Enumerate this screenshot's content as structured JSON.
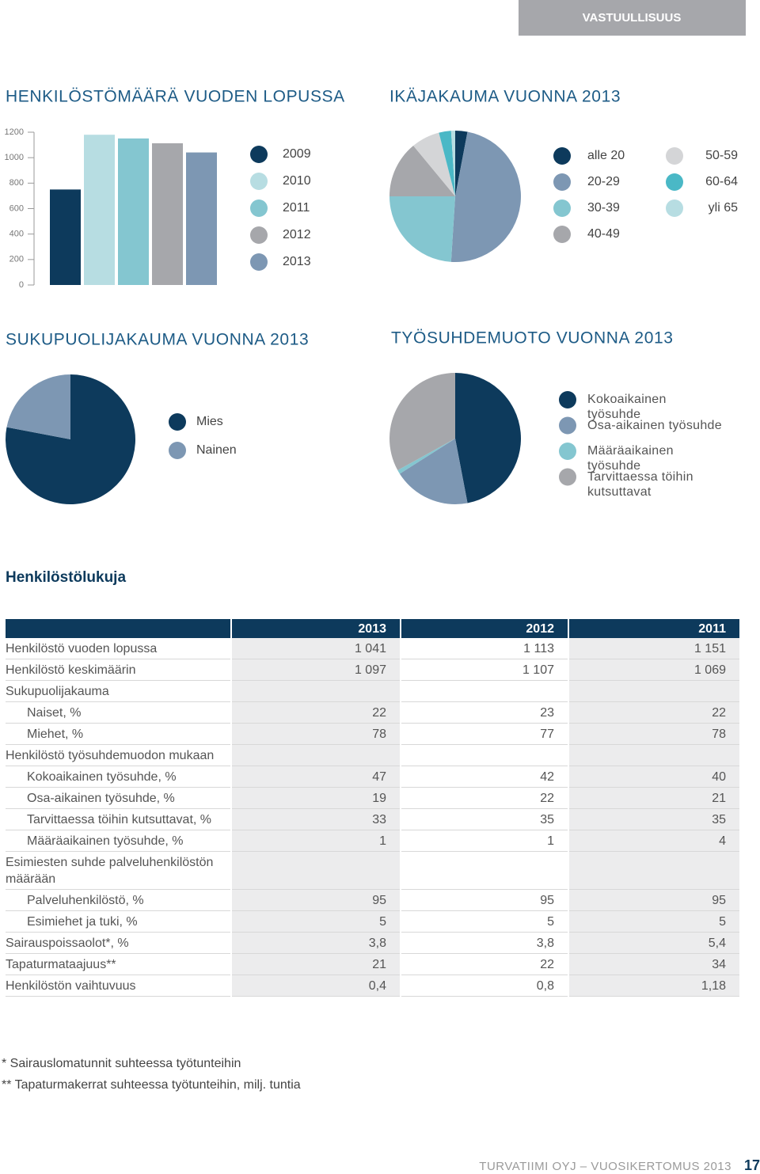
{
  "header": {
    "section": "VASTUULLISUUS"
  },
  "chart_data": [
    {
      "type": "bar",
      "title": "HENKILÖSTÖMÄÄRÄ VUODEN LOPUSSA",
      "categories": [
        "2009",
        "2010",
        "2011",
        "2012",
        "2013"
      ],
      "values": [
        750,
        1180,
        1151,
        1113,
        1041
      ],
      "colors": [
        "#0d3a5c",
        "#b7dde2",
        "#84c6d0",
        "#a6a7ab",
        "#7d97b3"
      ],
      "ylim": [
        0,
        1200
      ],
      "yticks": [
        0,
        200,
        400,
        600,
        800,
        1000,
        1200
      ]
    },
    {
      "type": "pie",
      "title": "IKÄJAKAUMA VUONNA 2013",
      "categories": [
        "alle 20",
        "20-29",
        "30-39",
        "40-49",
        "50-59",
        "60-64",
        "yli 65"
      ],
      "values": [
        3,
        48,
        24,
        14,
        7,
        3,
        1
      ],
      "colors": [
        "#0d3a5c",
        "#7d97b3",
        "#84c6d0",
        "#a6a7ab",
        "#d4d5d7",
        "#4ab8c6",
        "#b7dde2"
      ]
    },
    {
      "type": "pie",
      "title": "SUKUPUOLIJAKAUMA VUONNA 2013",
      "categories": [
        "Mies",
        "Nainen"
      ],
      "values": [
        78,
        22
      ],
      "colors": [
        "#0d3a5c",
        "#7d97b3"
      ]
    },
    {
      "type": "pie",
      "title": "TYÖSUHDEMUOTO VUONNA 2013",
      "categories": [
        "Kokoaikainen työsuhde",
        "Osa-aikainen työsuhde",
        "Määräaikainen työsuhde",
        "Tarvittaessa töihin kutsuttavat"
      ],
      "values": [
        47,
        19,
        1,
        33
      ],
      "colors": [
        "#0d3a5c",
        "#7d97b3",
        "#84c6d0",
        "#a6a7ab"
      ]
    }
  ],
  "table": {
    "title": "Henkilöstölukuja",
    "columns": [
      "2013",
      "2012",
      "2011"
    ],
    "rows": [
      {
        "label": "Henkilöstö vuoden lopussa",
        "values": [
          "1 041",
          "1 113",
          "1 151"
        ]
      },
      {
        "label": "Henkilöstö keskimäärin",
        "values": [
          "1 097",
          "1 107",
          "1 069"
        ]
      },
      {
        "label": "Sukupuolijakauma",
        "rows": [
          {
            "label": "Naiset, %",
            "values": [
              "22",
              "23",
              "22"
            ]
          },
          {
            "label": "Miehet, %",
            "values": [
              "78",
              "77",
              "78"
            ]
          }
        ]
      },
      {
        "label": "Henkilöstö työsuhdemuodon mukaan",
        "rows": [
          {
            "label": "Kokoaikainen työsuhde, %",
            "values": [
              "47",
              "42",
              "40"
            ]
          },
          {
            "label": "Osa-aikainen työsuhde, %",
            "values": [
              "19",
              "22",
              "21"
            ]
          },
          {
            "label": "Tarvittaessa töihin kutsuttavat, %",
            "values": [
              "33",
              "35",
              "35"
            ]
          },
          {
            "label": "Määräaikainen työsuhde, %",
            "values": [
              "1",
              "1",
              "4"
            ]
          }
        ]
      },
      {
        "label": "Esimiesten suhde palveluhenkilöstön määrään",
        "rows": [
          {
            "label": "Palveluhenkilöstö, %",
            "values": [
              "95",
              "95",
              "95"
            ]
          },
          {
            "label": "Esimiehet ja tuki, %",
            "values": [
              "5",
              "5",
              "5"
            ]
          }
        ]
      },
      {
        "label": "Sairauspoissaolot*, %",
        "values": [
          "3,8",
          "3,8",
          "5,4"
        ]
      },
      {
        "label": "Tapaturmataajuus**",
        "values": [
          "21",
          "22",
          "34"
        ]
      },
      {
        "label": "Henkilöstön vaihtuvuus",
        "values": [
          "0,4",
          "0,8",
          "1,18"
        ]
      }
    ]
  },
  "footnotes": [
    "* Sairauslomatunnit suhteessa työtunteihin",
    "** Tapaturmakerrat suhteessa työtunteihin, milj. tuntia"
  ],
  "footer": {
    "publication": "TURVATIIMI OYJ – VUOSIKERTOMUS 2013",
    "page": "17"
  }
}
